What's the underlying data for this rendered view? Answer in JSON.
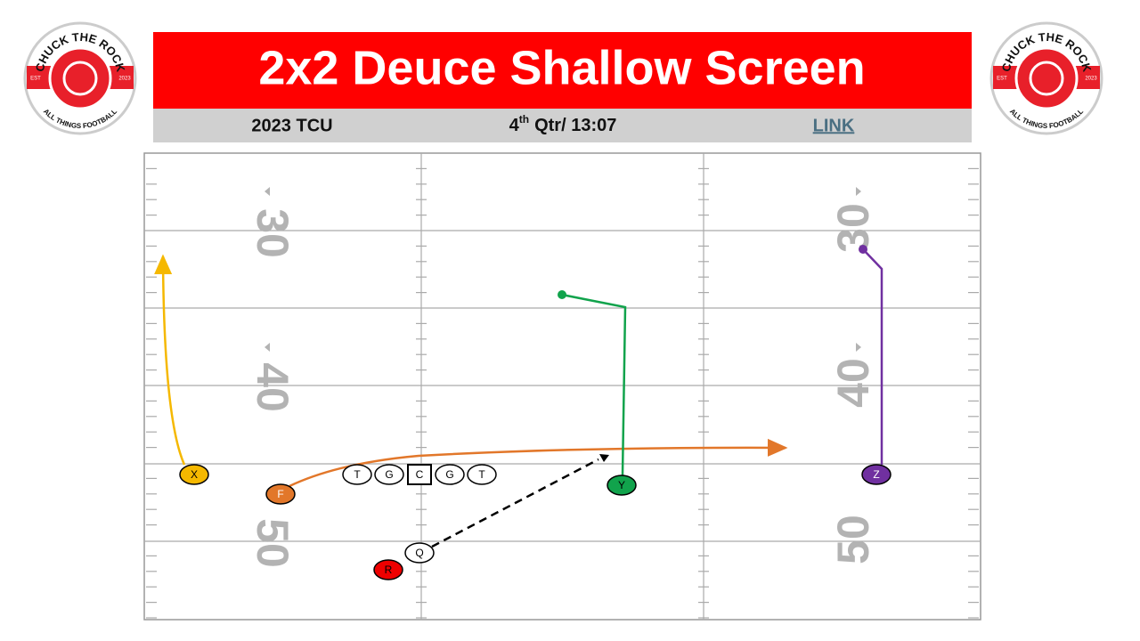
{
  "header": {
    "title": "2x2 Deuce Shallow Screen",
    "team": "2023 TCU",
    "time": {
      "quarter": "4",
      "suffix": "th",
      "clock": "Qtr/ 13:07"
    },
    "link": "LINK"
  },
  "logos": [
    {
      "top": "CHUCK THE ROCK",
      "bottom": "ALL THINGS FOOTBALL",
      "left": "EST",
      "right": "2023"
    },
    {
      "top": "CHUCK THE ROCK",
      "bottom": "ALL THINGS FOOTBALL",
      "left": "EST",
      "right": "2023"
    }
  ],
  "field": {
    "yard_numbers": [
      "30",
      "40",
      "50"
    ]
  },
  "players": [
    "X",
    "F",
    "T",
    "G",
    "C",
    "G",
    "T",
    "Y",
    "Z",
    "Q",
    "R"
  ]
}
